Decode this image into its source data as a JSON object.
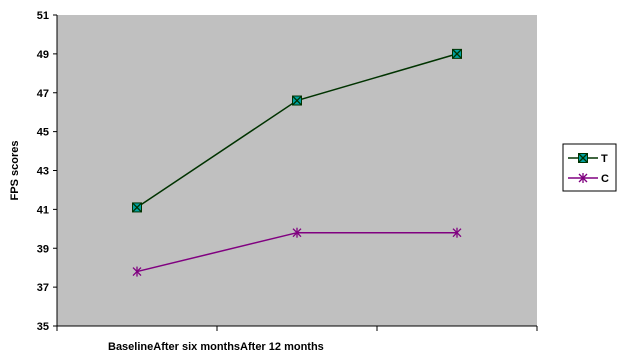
{
  "chart_data": {
    "type": "line",
    "title": "",
    "xlabel": "",
    "ylabel": "FPS scores",
    "categories": [
      "Baseline",
      "After six months",
      "After 12 months"
    ],
    "ylim": [
      35,
      51
    ],
    "y_ticks": [
      "35",
      "37",
      "39",
      "41",
      "43",
      "45",
      "47",
      "49",
      "51"
    ],
    "grid": false,
    "plot_background": "#c0c0c0",
    "legend_position": "right",
    "series": [
      {
        "name": "T",
        "values": [
          41.1,
          46.6,
          49.0
        ],
        "color": "#003300",
        "marker": "x-in-square",
        "marker_fill": "#00a0a0"
      },
      {
        "name": "C",
        "values": [
          37.8,
          39.8,
          39.8
        ],
        "color": "#800080",
        "marker": "asterisk",
        "marker_fill": "#800080"
      }
    ]
  }
}
